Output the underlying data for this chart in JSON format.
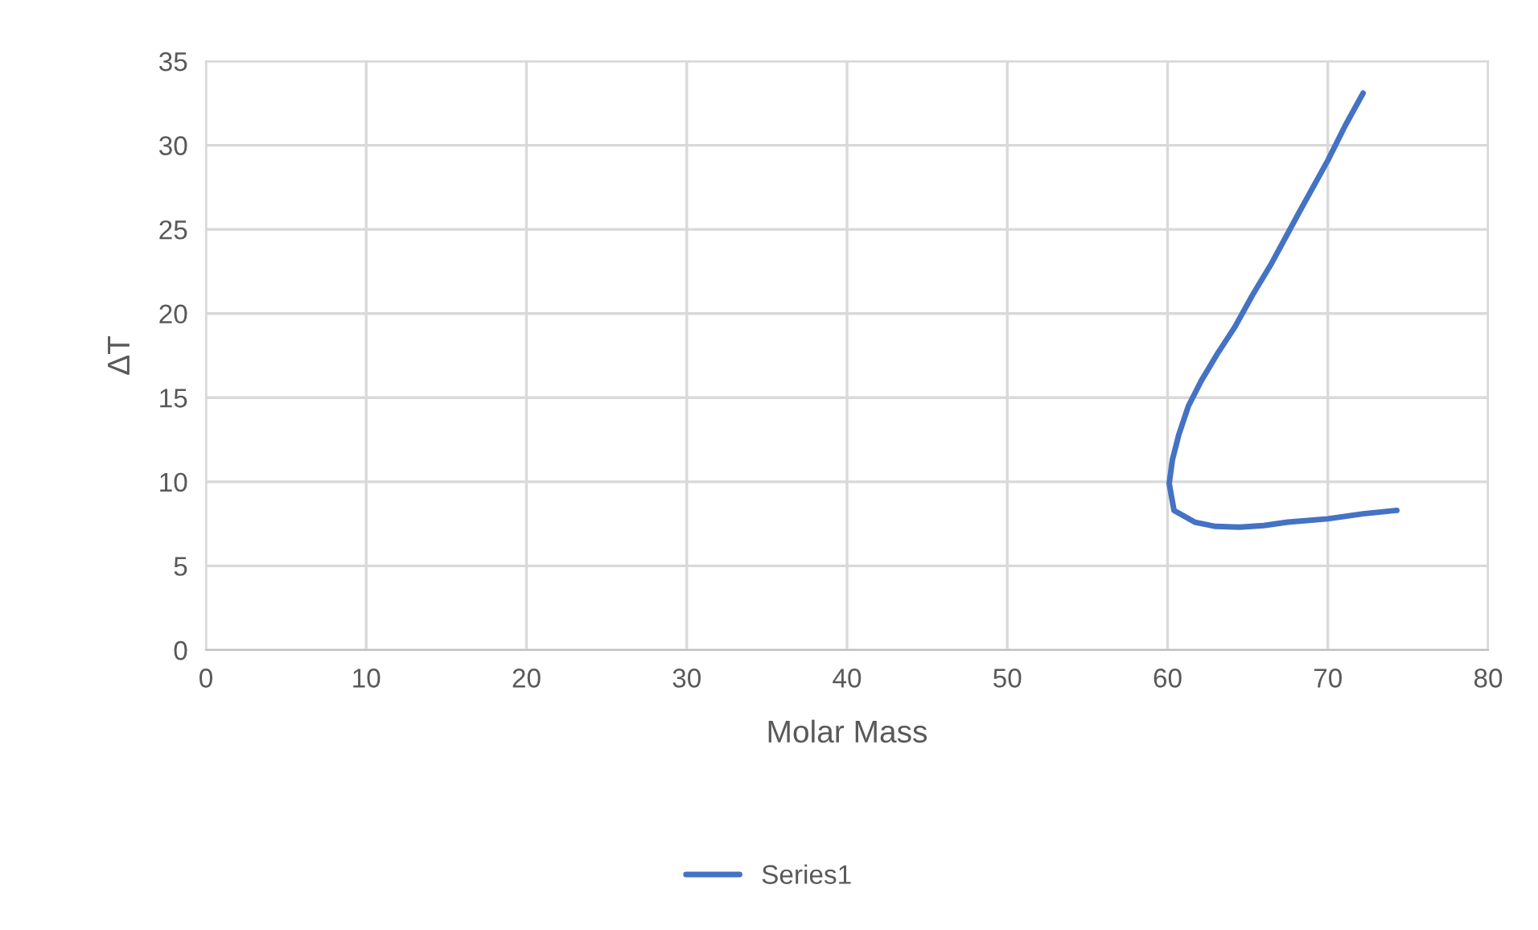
{
  "chart_data": {
    "type": "line",
    "xlabel": "Molar Mass",
    "ylabel": "ΔT",
    "series": [
      {
        "name": "Series1",
        "color": "#4472c4",
        "x": [
          72.2,
          71.1,
          70.0,
          68.2,
          66.5,
          65.3,
          64.2,
          63.1,
          62.1,
          61.3,
          60.7,
          60.3,
          60.1,
          60.4,
          61.7,
          63.0,
          64.5,
          66.0,
          67.5,
          70.0,
          72.2,
          74.3
        ],
        "values": [
          33.1,
          31.2,
          29.1,
          26.0,
          23.0,
          21.1,
          19.2,
          17.6,
          16.0,
          14.5,
          12.8,
          11.3,
          9.9,
          8.3,
          7.6,
          7.35,
          7.3,
          7.4,
          7.6,
          7.8,
          8.1,
          8.3
        ]
      }
    ],
    "xlim": [
      0,
      80
    ],
    "xticks": [
      0,
      10,
      20,
      30,
      40,
      50,
      60,
      70,
      80
    ],
    "ylim": [
      0,
      35
    ],
    "yticks": [
      0,
      5,
      10,
      15,
      20,
      25,
      30,
      35
    ],
    "grid": true,
    "legend": "bottom",
    "marker": "none",
    "line_style": "solid"
  }
}
